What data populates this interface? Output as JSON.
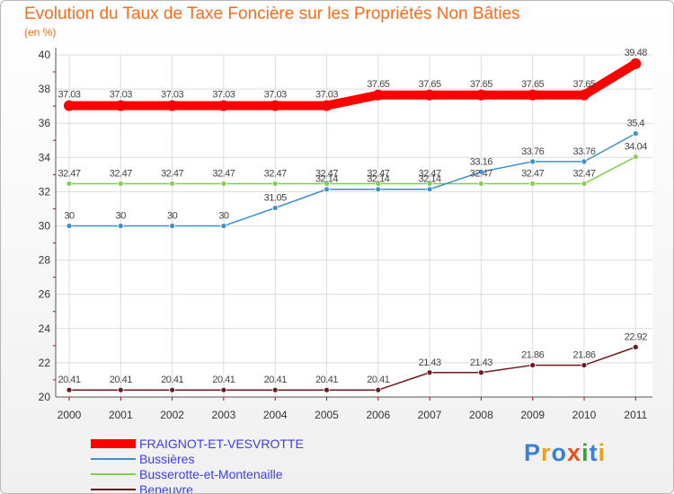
{
  "title": "Evolution du Taux de Taxe Foncière sur les Propriétés Non Bâties",
  "unit": "(en %)",
  "brand": "Proxiti",
  "chart_data": {
    "type": "line",
    "title": "Evolution du Taux de Taxe Foncière sur les Propriétés Non Bâties",
    "ylabel": "(en %)",
    "xlabel": "",
    "ylim": [
      20,
      40
    ],
    "yticks": [
      20,
      22,
      24,
      26,
      28,
      30,
      32,
      34,
      36,
      38,
      40
    ],
    "grid": true,
    "legend_position": "bottom-left",
    "x": [
      "2000",
      "2001",
      "2002",
      "2003",
      "2004",
      "2005",
      "2006",
      "2007",
      "2008",
      "2009",
      "2010",
      "2011"
    ],
    "series": [
      {
        "name": "FRAIGNOT-ET-VESVROTTE",
        "color": "#ff0000",
        "values": [
          37.03,
          37.03,
          37.03,
          37.03,
          37.03,
          37.03,
          37.65,
          37.65,
          37.65,
          37.65,
          37.65,
          39.48
        ],
        "labels": [
          "37.03",
          "37.03",
          "37.03",
          "37.03",
          "37.03",
          "37.03",
          "37.65",
          "37.65",
          "37.65",
          "37.65",
          "37.65",
          "39.48"
        ]
      },
      {
        "name": "Bussières",
        "color": "#3f8fd0",
        "values": [
          30,
          30,
          30,
          30,
          31.05,
          32.14,
          32.14,
          32.14,
          33.16,
          33.76,
          33.76,
          35.4
        ],
        "labels": [
          "30",
          "30",
          "30",
          "30",
          "31.05",
          "32.14",
          "32.14",
          "32.14",
          "33.16",
          "33.76",
          "33.76",
          "35.4"
        ]
      },
      {
        "name": "Busserotte-et-Montenaille",
        "color": "#80d050",
        "values": [
          32.47,
          32.47,
          32.47,
          32.47,
          32.47,
          32.47,
          32.47,
          32.47,
          32.47,
          32.47,
          32.47,
          34.04
        ],
        "labels": [
          "32.47",
          "32.47",
          "32.47",
          "32.47",
          "32.47",
          "32.47",
          "32.47",
          "32.47",
          "32.47",
          "32.47",
          "32.47",
          "34.04"
        ]
      },
      {
        "name": "Beneuvre",
        "color": "#6a1a1a",
        "values": [
          20.41,
          20.41,
          20.41,
          20.41,
          20.41,
          20.41,
          20.41,
          21.43,
          21.43,
          21.86,
          21.86,
          22.92
        ],
        "labels": [
          "20.41",
          "20.41",
          "20.41",
          "20.41",
          "20.41",
          "20.41",
          "20.41",
          "21.43",
          "21.43",
          "21.86",
          "21.86",
          "22.92"
        ]
      }
    ]
  }
}
